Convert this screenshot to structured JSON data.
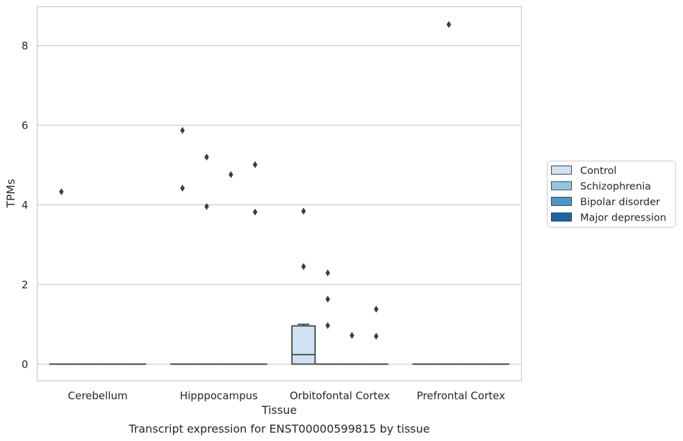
{
  "chart_data": {
    "type": "box",
    "title": "",
    "caption": "Transcript expression for ENST00000599815 by tissue",
    "xlabel": "Tissue",
    "ylabel": "TPMs",
    "ylim": [
      -0.42,
      8.98
    ],
    "yticks": [
      0,
      2,
      4,
      6,
      8
    ],
    "grid": "horizontal",
    "legend_position": "right",
    "categories": [
      "Cerebellum",
      "Hipppocampus",
      "Orbitofontal Cortex",
      "Prefrontal Cortex"
    ],
    "series": [
      {
        "name": "Control",
        "color": "#cfe1f2",
        "boxes": [
          {
            "q1": 0,
            "median": 0,
            "q3": 0,
            "whisker_low": 0,
            "whisker_high": 0,
            "outliers": [
              4.33
            ]
          },
          {
            "q1": 0,
            "median": 0,
            "q3": 0,
            "whisker_low": 0,
            "whisker_high": 0,
            "outliers": [
              5.87,
              4.42
            ]
          },
          {
            "q1": 0,
            "median": 0.24,
            "q3": 0.96,
            "whisker_low": 0,
            "whisker_high": 1.0,
            "outliers": [
              3.84,
              2.45
            ]
          },
          {
            "q1": 0,
            "median": 0,
            "q3": 0,
            "whisker_low": 0,
            "whisker_high": 0,
            "outliers": []
          }
        ]
      },
      {
        "name": "Schizophrenia",
        "color": "#93c4de",
        "boxes": [
          {
            "q1": 0,
            "median": 0,
            "q3": 0,
            "whisker_low": 0,
            "whisker_high": 0,
            "outliers": []
          },
          {
            "q1": 0,
            "median": 0,
            "q3": 0,
            "whisker_low": 0,
            "whisker_high": 0,
            "outliers": [
              5.2,
              3.96
            ]
          },
          {
            "q1": 0,
            "median": 0,
            "q3": 0,
            "whisker_low": 0,
            "whisker_high": 0,
            "outliers": [
              2.29,
              1.63,
              0.97
            ]
          },
          {
            "q1": 0,
            "median": 0,
            "q3": 0,
            "whisker_low": 0,
            "whisker_high": 0,
            "outliers": [
              8.53
            ]
          }
        ]
      },
      {
        "name": "Bipolar disorder",
        "color": "#4a98c9",
        "boxes": [
          {
            "q1": 0,
            "median": 0,
            "q3": 0,
            "whisker_low": 0,
            "whisker_high": 0,
            "outliers": []
          },
          {
            "q1": 0,
            "median": 0,
            "q3": 0,
            "whisker_low": 0,
            "whisker_high": 0,
            "outliers": [
              4.76
            ]
          },
          {
            "q1": 0,
            "median": 0,
            "q3": 0,
            "whisker_low": 0,
            "whisker_high": 0,
            "outliers": [
              0.72
            ]
          },
          {
            "q1": 0,
            "median": 0,
            "q3": 0,
            "whisker_low": 0,
            "whisker_high": 0,
            "outliers": []
          }
        ]
      },
      {
        "name": "Major depression",
        "color": "#1764ab",
        "boxes": [
          {
            "q1": 0,
            "median": 0,
            "q3": 0,
            "whisker_low": 0,
            "whisker_high": 0,
            "outliers": []
          },
          {
            "q1": 0,
            "median": 0,
            "q3": 0,
            "whisker_low": 0,
            "whisker_high": 0,
            "outliers": [
              5.01,
              3.82
            ]
          },
          {
            "q1": 0,
            "median": 0,
            "q3": 0,
            "whisker_low": 0,
            "whisker_high": 0,
            "outliers": [
              1.38,
              0.7
            ]
          },
          {
            "q1": 0,
            "median": 0,
            "q3": 0,
            "whisker_low": 0,
            "whisker_high": 0,
            "outliers": []
          }
        ]
      }
    ],
    "colors": {
      "axes_edge": "#cccccc",
      "grid": "#cccccc",
      "box_line": "#3d3d3d",
      "outlier": "#3d3d3d",
      "text": "#262626"
    }
  }
}
